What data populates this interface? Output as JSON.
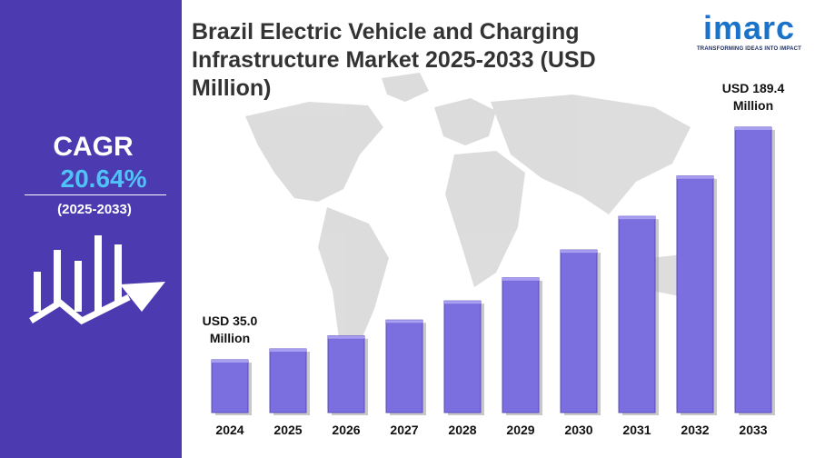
{
  "sidebar": {
    "cagr_label": "CAGR",
    "cagr_value": "20.64%",
    "cagr_period": "(2025-2033)",
    "icon": "bar-growth-arrow-icon"
  },
  "logo": {
    "name": "imarc",
    "tagline": "TRANSFORMING IDEAS INTO IMPACT"
  },
  "colors": {
    "sidebar": "#4b3ab0",
    "bar": "#7b6ede",
    "cagr_accent": "#4fc3f7"
  },
  "chart_data": {
    "type": "bar",
    "title": "Brazil Electric Vehicle and Charging Infrastructure Market 2025-2033 (USD Million)",
    "xlabel": "",
    "ylabel": "",
    "categories": [
      "2024",
      "2025",
      "2026",
      "2027",
      "2028",
      "2029",
      "2030",
      "2031",
      "2032",
      "2033"
    ],
    "values": [
      35.0,
      42.2,
      50.9,
      61.4,
      74.1,
      89.4,
      107.9,
      130.2,
      157.0,
      189.4
    ],
    "data_labels": [
      {
        "index": 0,
        "line1": "USD 35.0",
        "line2": "Million"
      },
      {
        "index": 9,
        "line1": "USD 189.4",
        "line2": "Million"
      }
    ],
    "ylim": [
      0,
      200
    ],
    "grid": false,
    "legend": "none"
  }
}
